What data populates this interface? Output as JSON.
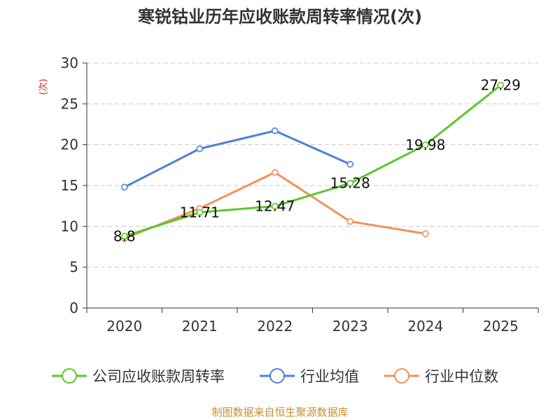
{
  "chart_data": {
    "type": "line",
    "title": "寒锐钴业历年应收账款周转率情况(次)",
    "ylabel": "(次)",
    "xlabel": "",
    "categories": [
      "2020",
      "2021",
      "2022",
      "2023",
      "2024",
      "2025"
    ],
    "ylim": [
      0,
      30
    ],
    "yticks": [
      "0",
      "5",
      "10",
      "15",
      "20",
      "25",
      "30"
    ],
    "grid": true,
    "legend_position": "bottom",
    "series": [
      {
        "name": "公司应收账款周转率",
        "color": "#5cc72a",
        "values": [
          8.8,
          11.71,
          12.47,
          15.28,
          19.98,
          27.29
        ],
        "labels": [
          "8.8",
          "11.71",
          "12.47",
          "15.28",
          "19.98",
          "27.29"
        ]
      },
      {
        "name": "行业均值",
        "color": "#4f7fd9",
        "values": [
          14.8,
          19.5,
          21.7,
          17.6,
          null,
          null
        ]
      },
      {
        "name": "行业中位数",
        "color": "#f5905a",
        "values": [
          8.5,
          12.2,
          16.6,
          10.6,
          9.1,
          null
        ]
      }
    ],
    "source": "制图数据来自恒生聚源数据库"
  }
}
